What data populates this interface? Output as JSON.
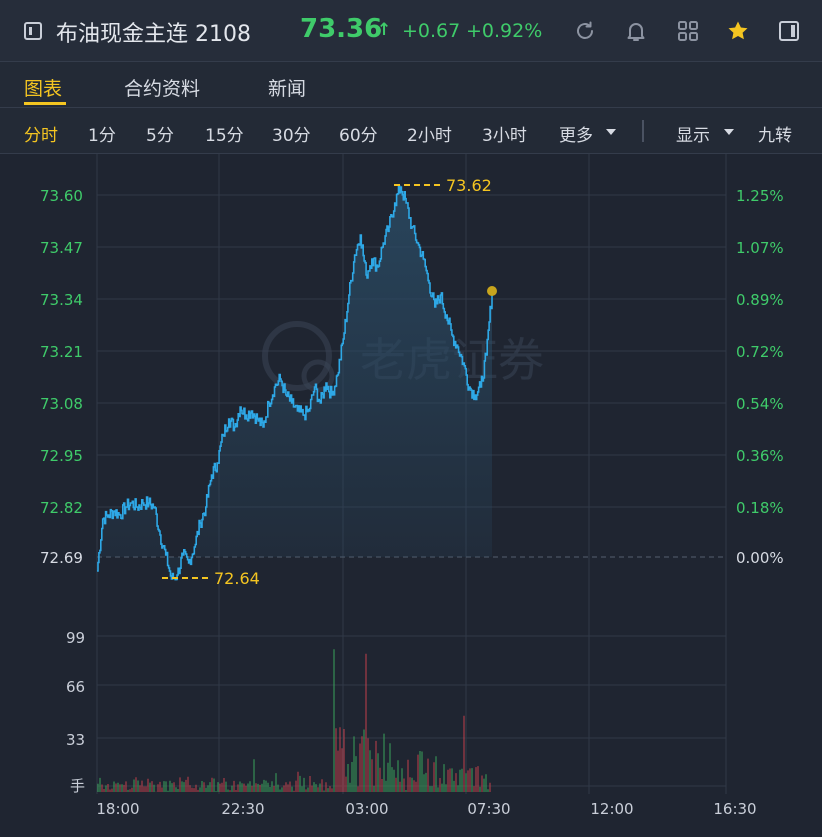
{
  "header": {
    "title": "布油现金主连 2108",
    "price": "73.36",
    "arrow": "↑",
    "change": "+0.67",
    "change_pct": "+0.92%",
    "icons": [
      "refresh-icon",
      "bell-icon",
      "grid-icon",
      "star-icon",
      "panel-icon"
    ]
  },
  "tabs": [
    {
      "label": "图表",
      "active": true
    },
    {
      "label": "合约资料",
      "active": false
    },
    {
      "label": "新闻",
      "active": false
    }
  ],
  "periods": [
    {
      "label": "分时",
      "active": true
    },
    {
      "label": "1分"
    },
    {
      "label": "5分"
    },
    {
      "label": "15分"
    },
    {
      "label": "30分"
    },
    {
      "label": "60分"
    },
    {
      "label": "2小时"
    },
    {
      "label": "3小时"
    },
    {
      "label": "更多"
    }
  ],
  "options": {
    "display": "显示",
    "nine": "九转"
  },
  "colors": {
    "accent": "#f4c521",
    "up": "#3fcb6a",
    "line": "#2ea8e6",
    "down": "#e0454a"
  },
  "watermark": "老虎证券",
  "chart_data": {
    "type": "line",
    "price_ticks": [
      "73.60",
      "73.47",
      "73.34",
      "73.21",
      "73.08",
      "72.95",
      "72.82",
      "72.69"
    ],
    "pct_ticks": [
      "1.25%",
      "1.07%",
      "0.89%",
      "0.72%",
      "0.54%",
      "0.36%",
      "0.18%",
      "0.00%"
    ],
    "high_label": "73.62",
    "low_label": "72.64",
    "ylim": [
      72.69,
      73.6
    ],
    "x_ticks": [
      "18:00",
      "22:30",
      "03:00",
      "07:30",
      "12:00",
      "16:30"
    ],
    "volume_ticks": [
      "99",
      "66",
      "33"
    ],
    "volume_unit": "手",
    "ylim_volume": [
      0,
      99
    ],
    "series_prices": [
      72.66,
      72.79,
      72.8,
      72.81,
      72.8,
      72.82,
      72.83,
      72.82,
      72.83,
      72.83,
      72.82,
      72.75,
      72.7,
      72.64,
      72.65,
      72.7,
      72.68,
      72.72,
      72.78,
      72.82,
      72.9,
      72.93,
      73.0,
      73.04,
      73.02,
      73.07,
      73.05,
      73.06,
      73.04,
      73.02,
      73.08,
      73.12,
      73.14,
      73.1,
      73.08,
      73.06,
      73.05,
      73.06,
      73.12,
      73.08,
      73.13,
      73.1,
      73.15,
      73.24,
      73.35,
      73.45,
      73.5,
      73.4,
      73.44,
      73.42,
      73.48,
      73.52,
      73.58,
      73.62,
      73.58,
      73.52,
      73.48,
      73.44,
      73.38,
      73.32,
      73.35,
      73.3,
      73.25,
      73.22,
      73.18,
      73.12,
      73.1,
      73.12,
      73.2,
      73.36
    ]
  }
}
